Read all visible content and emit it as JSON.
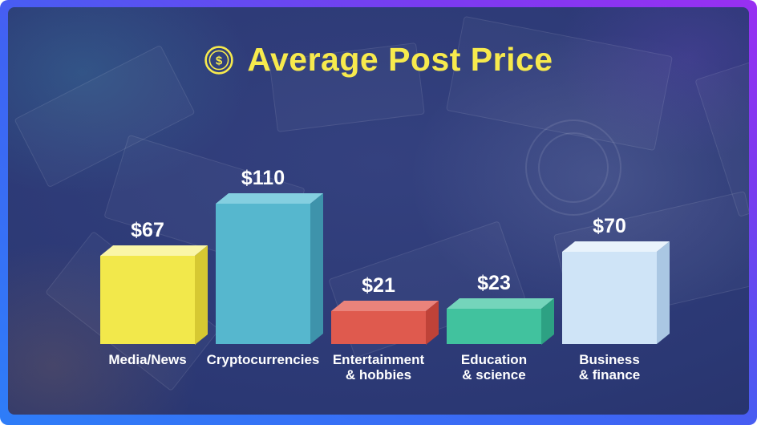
{
  "title": {
    "text": "Average Post Price",
    "icon": "dollar-coin-icon"
  },
  "chart_data": {
    "type": "bar",
    "title": "Average Post Price",
    "categories": [
      "Media/News",
      "Cryptocurrencies",
      "Entertainment & hobbies",
      "Education & science",
      "Business & finance"
    ],
    "values": [
      67,
      110,
      21,
      23,
      70
    ],
    "value_labels": [
      "$67",
      "$110",
      "$21",
      "$23",
      "$70"
    ],
    "category_lines": [
      [
        "Media/News"
      ],
      [
        "Cryptocurrencies"
      ],
      [
        "Entertainment",
        "& hobbies"
      ],
      [
        "Education",
        "& science"
      ],
      [
        "Business",
        "& finance"
      ]
    ],
    "xlabel": "",
    "ylabel": "",
    "ylim": [
      0,
      110
    ],
    "grid": false,
    "legend": "none",
    "axes": "hidden",
    "bar_style": "3d",
    "bar_colors": [
      {
        "front": "#f2e84b",
        "top": "#faf6a8",
        "side": "#d6c832"
      },
      {
        "front": "#56b7ce",
        "top": "#84cfe0",
        "side": "#3e93ab"
      },
      {
        "front": "#df5a4e",
        "top": "#ea837b",
        "side": "#bf4238"
      },
      {
        "front": "#41c29e",
        "top": "#74d5bb",
        "side": "#2da183"
      },
      {
        "front": "#cfe4f7",
        "top": "#e9f3fc",
        "side": "#aac7e3"
      }
    ],
    "value_label_color": "#ffffff",
    "category_label_color": "#ffffff"
  },
  "colors": {
    "title_text": "#f7ea4d",
    "slide_background": "#2b3874",
    "frame_gradient": [
      "#2e7df8",
      "#3f63f3",
      "#7a3bf0",
      "#992ff2"
    ]
  }
}
